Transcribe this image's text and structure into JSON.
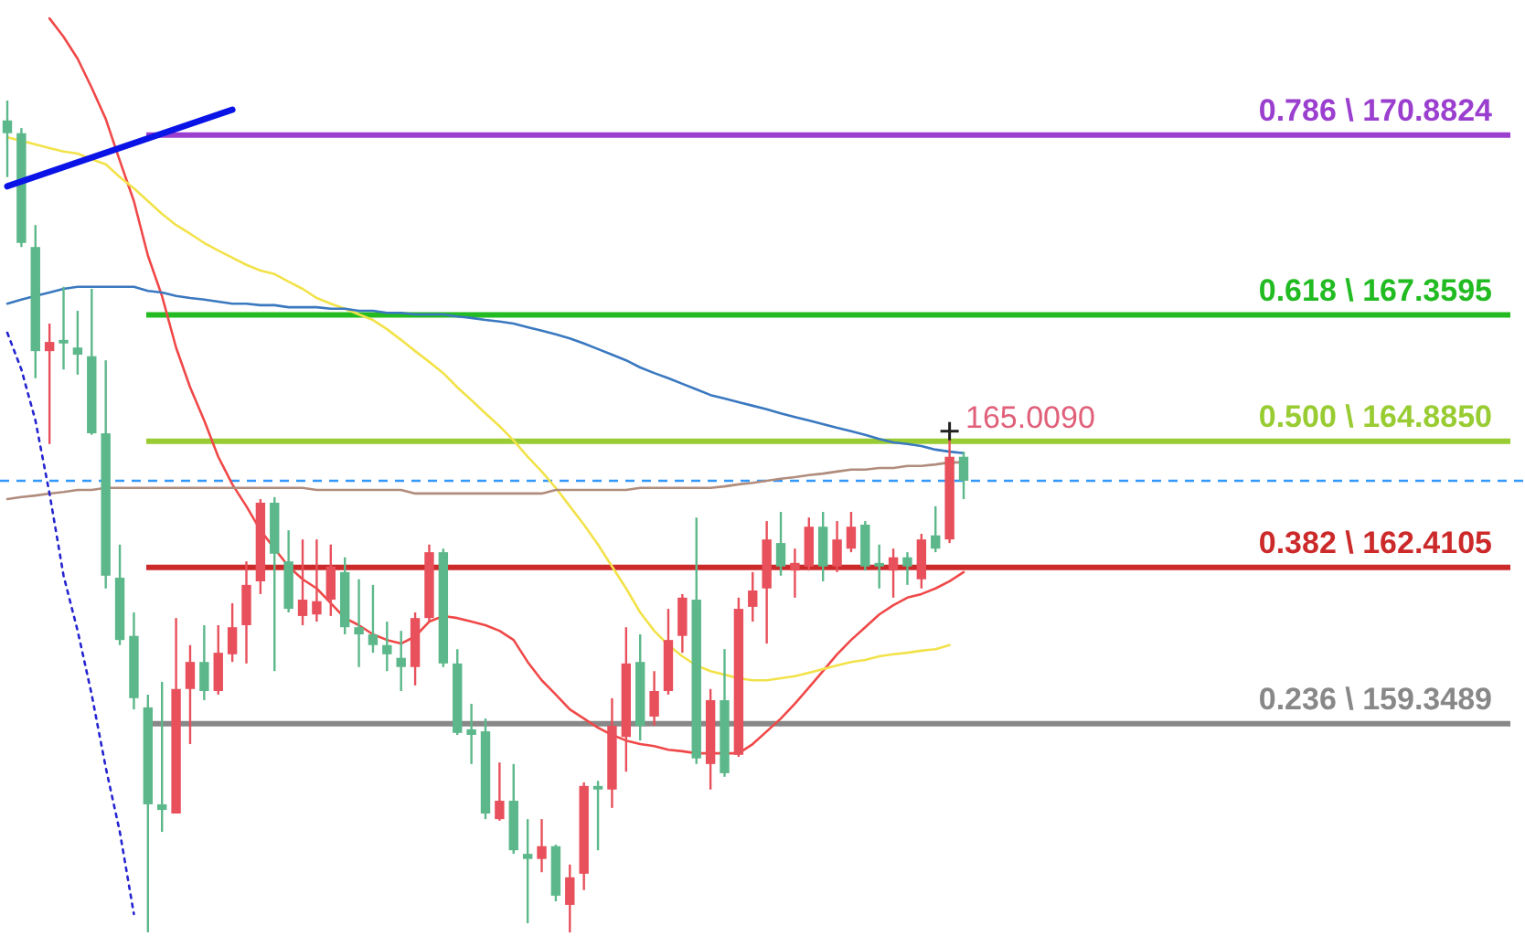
{
  "chart_data": {
    "type": "candlestick",
    "categories": [
      null,
      null,
      null,
      null,
      null,
      null,
      null,
      null,
      null,
      null,
      null,
      null,
      null,
      null,
      null,
      null,
      null,
      null,
      null,
      null,
      null,
      null,
      null,
      null,
      null,
      null,
      null,
      null,
      null,
      null,
      null,
      null,
      null,
      null,
      null,
      null,
      null,
      null,
      null,
      null,
      null,
      null,
      null,
      null,
      null,
      null,
      null,
      null,
      null,
      null,
      null,
      null,
      null,
      null,
      null,
      null,
      null,
      null,
      null,
      null,
      null,
      null,
      null,
      null,
      null,
      null,
      null,
      null,
      null
    ],
    "ohlc": [
      [
        171.17,
        171.56,
        170.06,
        170.92
      ],
      [
        170.92,
        171.02,
        168.69,
        168.77
      ],
      [
        168.69,
        169.12,
        166.12,
        166.65
      ],
      [
        166.65,
        167.19,
        164.83,
        166.83
      ],
      [
        166.87,
        167.91,
        166.29,
        166.8
      ],
      [
        166.72,
        167.44,
        166.19,
        166.58
      ],
      [
        166.55,
        167.87,
        165.01,
        165.04
      ],
      [
        165.04,
        166.47,
        162.0,
        162.25
      ],
      [
        162.21,
        162.86,
        160.89,
        160.99
      ],
      [
        161.07,
        161.53,
        159.63,
        159.85
      ],
      [
        159.67,
        159.92,
        155.26,
        157.77
      ],
      [
        157.77,
        160.17,
        157.23,
        157.66
      ],
      [
        157.59,
        161.42,
        157.59,
        160.03
      ],
      [
        160.03,
        160.89,
        158.95,
        160.56
      ],
      [
        160.56,
        161.28,
        159.81,
        159.99
      ],
      [
        159.99,
        161.28,
        159.92,
        160.74
      ],
      [
        160.71,
        161.71,
        160.56,
        161.24
      ],
      [
        161.28,
        162.53,
        160.53,
        162.07
      ],
      [
        162.14,
        163.75,
        161.89,
        163.68
      ],
      [
        163.68,
        163.79,
        160.38,
        162.68
      ],
      [
        162.53,
        163.14,
        161.53,
        161.6
      ],
      [
        161.46,
        162.96,
        161.28,
        161.78
      ],
      [
        161.49,
        162.96,
        161.35,
        161.75
      ],
      [
        161.78,
        162.86,
        161.46,
        162.43
      ],
      [
        162.32,
        162.61,
        161.1,
        161.24
      ],
      [
        161.24,
        162.18,
        160.46,
        161.1
      ],
      [
        161.1,
        162.07,
        160.74,
        160.89
      ],
      [
        160.89,
        161.35,
        160.38,
        160.71
      ],
      [
        160.64,
        161.17,
        159.99,
        160.46
      ],
      [
        160.46,
        161.53,
        160.1,
        161.42
      ],
      [
        161.42,
        162.86,
        161.35,
        162.71
      ],
      [
        162.71,
        162.78,
        160.46,
        160.53
      ],
      [
        160.53,
        160.81,
        159.13,
        159.17
      ],
      [
        159.24,
        159.74,
        158.56,
        159.13
      ],
      [
        159.2,
        159.45,
        157.48,
        157.59
      ],
      [
        157.48,
        158.59,
        157.45,
        157.84
      ],
      [
        157.84,
        158.56,
        156.8,
        156.87
      ],
      [
        156.8,
        157.48,
        155.44,
        156.7
      ],
      [
        156.7,
        157.48,
        156.44,
        156.95
      ],
      [
        156.95,
        156.98,
        155.87,
        155.98
      ],
      [
        155.8,
        156.59,
        155.26,
        156.34
      ],
      [
        156.41,
        158.2,
        156.09,
        158.13
      ],
      [
        158.13,
        158.23,
        156.87,
        158.06
      ],
      [
        158.06,
        159.85,
        157.7,
        159.31
      ],
      [
        159.09,
        161.24,
        158.41,
        160.53
      ],
      [
        160.56,
        161.1,
        159.02,
        159.31
      ],
      [
        159.49,
        160.38,
        159.31,
        159.99
      ],
      [
        159.99,
        161.6,
        159.92,
        160.99
      ],
      [
        161.07,
        161.89,
        160.74,
        161.82
      ],
      [
        161.78,
        163.39,
        158.56,
        158.67
      ],
      [
        158.56,
        160.03,
        158.06,
        159.81
      ],
      [
        159.81,
        160.81,
        158.31,
        158.38
      ],
      [
        158.74,
        161.82,
        158.7,
        161.6
      ],
      [
        161.64,
        162.32,
        161.35,
        161.96
      ],
      [
        162.0,
        163.32,
        160.92,
        162.96
      ],
      [
        162.89,
        163.5,
        162.25,
        162.43
      ],
      [
        162.35,
        162.78,
        161.82,
        162.5
      ],
      [
        162.43,
        163.39,
        162.35,
        163.21
      ],
      [
        163.21,
        163.5,
        162.14,
        162.43
      ],
      [
        162.43,
        163.32,
        162.32,
        162.96
      ],
      [
        162.78,
        163.5,
        162.71,
        163.21
      ],
      [
        163.25,
        163.32,
        162.35,
        162.43
      ],
      [
        162.5,
        162.86,
        162.0,
        162.43
      ],
      [
        162.35,
        162.78,
        161.82,
        162.61
      ],
      [
        162.61,
        162.71,
        162.07,
        162.43
      ],
      [
        162.18,
        163.07,
        162.0,
        162.96
      ],
      [
        163.04,
        163.61,
        162.71,
        162.78
      ],
      [
        162.96,
        165.01,
        162.89,
        164.58
      ],
      [
        164.58,
        164.68,
        163.75,
        164.11
      ]
    ],
    "colors": [
      "#5cb88a",
      "#5cb88a",
      "#5cb88a",
      "#e8505b",
      "#5cb88a",
      "#5cb88a",
      "#5cb88a",
      "#5cb88a",
      "#5cb88a",
      "#5cb88a",
      "#5cb88a",
      "#5cb88a",
      "#e8505b",
      "#e8505b",
      "#5cb88a",
      "#e8505b",
      "#e8505b",
      "#e8505b",
      "#e8505b",
      "#5cb88a",
      "#5cb88a",
      "#e8505b",
      "#e8505b",
      "#e8505b",
      "#5cb88a",
      "#5cb88a",
      "#5cb88a",
      "#5cb88a",
      "#5cb88a",
      "#e8505b",
      "#e8505b",
      "#5cb88a",
      "#5cb88a",
      "#5cb88a",
      "#5cb88a",
      "#e8505b",
      "#5cb88a",
      "#5cb88a",
      "#e8505b",
      "#5cb88a",
      "#e8505b",
      "#e8505b",
      "#5cb88a",
      "#e8505b",
      "#e8505b",
      "#5cb88a",
      "#e8505b",
      "#e8505b",
      "#e8505b",
      "#5cb88a",
      "#e8505b",
      "#5cb88a",
      "#e8505b",
      "#e8505b",
      "#e8505b",
      "#5cb88a",
      "#e8505b",
      "#e8505b",
      "#5cb88a",
      "#e8505b",
      "#e8505b",
      "#5cb88a",
      "#5cb88a",
      "#e8505b",
      "#5cb88a",
      "#e8505b",
      "#5cb88a",
      "#e8505b",
      "#5cb88a"
    ],
    "ylim": [
      155.19,
      173.53
    ],
    "series": [
      {
        "type": "line",
        "color": "#f04848",
        "values": [
          null,
          null,
          null,
          173.17,
          172.81,
          172.38,
          171.81,
          171.2,
          170.38,
          169.59,
          168.52,
          167.73,
          166.72,
          165.94,
          165.29,
          164.58,
          164.04,
          163.61,
          163.14,
          162.78,
          162.43,
          162.18,
          162.0,
          161.71,
          161.42,
          161.28,
          161.1,
          160.99,
          160.92,
          161.06,
          161.35,
          161.46,
          161.42,
          161.35,
          161.28,
          161.17,
          160.99,
          160.56,
          160.2,
          159.92,
          159.63,
          159.45,
          159.27,
          159.13,
          159.02,
          158.95,
          158.91,
          158.84,
          158.81,
          158.77,
          158.77,
          158.77,
          158.77,
          158.95,
          159.2,
          159.45,
          159.74,
          160.06,
          160.38,
          160.71,
          160.99,
          161.24,
          161.49,
          161.67,
          161.82,
          161.89,
          162.0,
          162.14,
          162.32
        ]
      },
      {
        "type": "line",
        "color": "#f2e24a",
        "values": [
          170.84,
          170.77,
          170.7,
          170.63,
          170.56,
          170.52,
          170.41,
          170.31,
          170.06,
          169.84,
          169.59,
          169.34,
          169.12,
          168.95,
          168.77,
          168.62,
          168.48,
          168.34,
          168.23,
          168.16,
          168.01,
          167.87,
          167.69,
          167.58,
          167.48,
          167.37,
          167.26,
          167.08,
          166.87,
          166.65,
          166.44,
          166.22,
          165.94,
          165.69,
          165.43,
          165.18,
          164.9,
          164.58,
          164.29,
          163.97,
          163.61,
          163.25,
          162.86,
          162.43,
          162.0,
          161.53,
          161.17,
          160.89,
          160.67,
          160.49,
          160.38,
          160.31,
          160.24,
          160.2,
          160.2,
          160.24,
          160.28,
          160.35,
          160.42,
          160.49,
          160.56,
          160.6,
          160.67,
          160.71,
          160.74,
          160.78,
          160.81,
          160.89,
          null
        ]
      },
      {
        "type": "line",
        "color": "#3a78c0",
        "values": [
          167.58,
          167.66,
          167.73,
          167.8,
          167.87,
          167.91,
          167.91,
          167.91,
          167.91,
          167.91,
          167.83,
          167.8,
          167.73,
          167.69,
          167.66,
          167.62,
          167.58,
          167.58,
          167.55,
          167.55,
          167.51,
          167.51,
          167.51,
          167.48,
          167.48,
          167.44,
          167.44,
          167.4,
          167.4,
          167.37,
          167.37,
          167.37,
          167.33,
          167.3,
          167.26,
          167.23,
          167.19,
          167.12,
          167.05,
          166.98,
          166.9,
          166.8,
          166.69,
          166.58,
          166.47,
          166.33,
          166.22,
          166.12,
          166.01,
          165.9,
          165.79,
          165.72,
          165.65,
          165.58,
          165.51,
          165.43,
          165.36,
          165.29,
          165.22,
          165.15,
          165.08,
          165.01,
          164.93,
          164.86,
          164.83,
          164.79,
          164.72,
          164.68,
          164.65
        ]
      },
      {
        "type": "line",
        "color": "#b08c7c",
        "values": [
          163.75,
          163.79,
          163.82,
          163.86,
          163.89,
          163.93,
          163.93,
          163.97,
          163.97,
          163.97,
          163.97,
          163.97,
          163.97,
          163.97,
          163.97,
          163.97,
          163.97,
          163.97,
          163.97,
          163.97,
          163.97,
          163.97,
          163.93,
          163.93,
          163.93,
          163.93,
          163.93,
          163.93,
          163.93,
          163.86,
          163.86,
          163.86,
          163.86,
          163.86,
          163.86,
          163.86,
          163.86,
          163.86,
          163.86,
          163.93,
          163.93,
          163.93,
          163.93,
          163.93,
          163.93,
          163.97,
          163.97,
          163.97,
          163.97,
          163.97,
          163.97,
          164.0,
          164.04,
          164.07,
          164.11,
          164.15,
          164.18,
          164.22,
          164.25,
          164.29,
          164.33,
          164.33,
          164.36,
          164.36,
          164.4,
          164.4,
          164.43,
          164.47,
          164.47
        ]
      },
      {
        "type": "line",
        "color": "#2424d0",
        "line_style": "dotted",
        "values": [
          167.01,
          166.29,
          165.29,
          163.86,
          162.25,
          161.17,
          159.92,
          158.49,
          157.23,
          155.62,
          null,
          null,
          null,
          null,
          null,
          null,
          null,
          null,
          null,
          null,
          null,
          null,
          null,
          null,
          null,
          null,
          null,
          null,
          null,
          null,
          null,
          null,
          null,
          null,
          null,
          null,
          null,
          null,
          null,
          null,
          null,
          null,
          null,
          null,
          null,
          null,
          null,
          null,
          null,
          null,
          null,
          null,
          null,
          null,
          null,
          null,
          null,
          null,
          null,
          null,
          null,
          null,
          null,
          null,
          null,
          null,
          null,
          null,
          null
        ]
      },
      {
        "type": "line",
        "color": "#0a14e6",
        "values": [
          169.88,
          null,
          null,
          null,
          null,
          null,
          null,
          null,
          null,
          null,
          null,
          null,
          null,
          null,
          null,
          null,
          171.38,
          null,
          null,
          null,
          null,
          null,
          null,
          null,
          null,
          null,
          null,
          null,
          null,
          null,
          null,
          null,
          null,
          null,
          null,
          null,
          null,
          null,
          null,
          null,
          null,
          null,
          null,
          null,
          null,
          null,
          null,
          null,
          null,
          null,
          null,
          null,
          null,
          null,
          null,
          null,
          null,
          null,
          null,
          null,
          null,
          null,
          null,
          null,
          null,
          null,
          null,
          null,
          null
        ]
      }
    ],
    "ref_lines": [
      {
        "axis": "y",
        "value": 170.8824,
        "label": "0.786 \\ 170.8824",
        "color": "#9b3fcf"
      },
      {
        "axis": "y",
        "value": 167.3595,
        "label": "0.618 \\ 167.3595",
        "color": "#22bb22"
      },
      {
        "axis": "y",
        "value": 164.885,
        "label": "0.500 \\ 164.8850",
        "color": "#99cc33"
      },
      {
        "axis": "y",
        "value": 162.4105,
        "label": "0.382 \\ 162.4105",
        "color": "#cc2a2a"
      },
      {
        "axis": "y",
        "value": 159.3489,
        "label": "0.236 \\ 159.3489",
        "color": "#888888"
      },
      {
        "axis": "y",
        "value": 164.11,
        "color": "#3399ff",
        "line_style": "dashed"
      }
    ],
    "annotations": [
      {
        "text": "165.0090",
        "y": 165.009
      }
    ]
  }
}
